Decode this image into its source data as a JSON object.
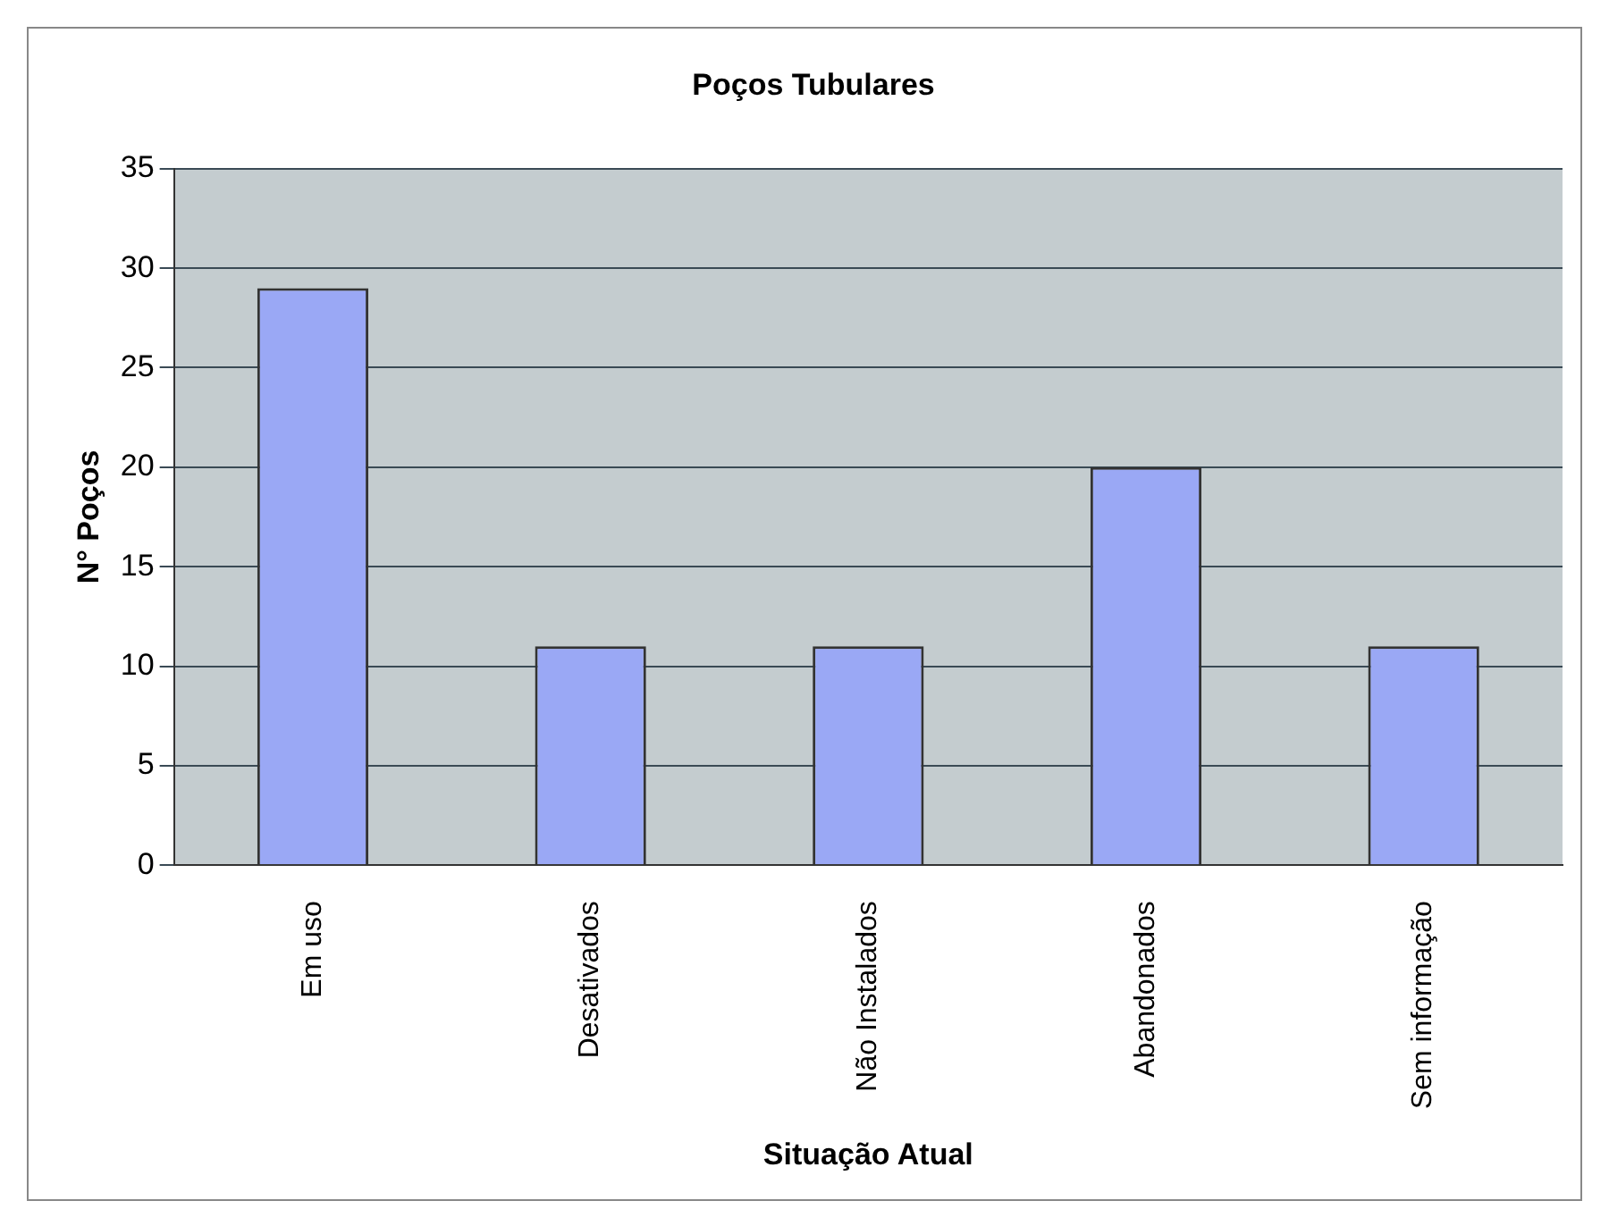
{
  "chart_data": {
    "type": "bar",
    "title": "Poços Tubulares",
    "xlabel": "Situação Atual",
    "ylabel": "N° Poços",
    "categories": [
      "Em uso",
      "Desativados",
      "Não Instalados",
      "Abandonados",
      "Sem informação"
    ],
    "values": [
      29,
      11,
      11,
      20,
      11
    ],
    "color": "#9aa8f5",
    "ylim": [
      0,
      35
    ],
    "yticks": [
      0,
      5,
      10,
      15,
      20,
      25,
      30,
      35
    ],
    "grid": "y"
  }
}
